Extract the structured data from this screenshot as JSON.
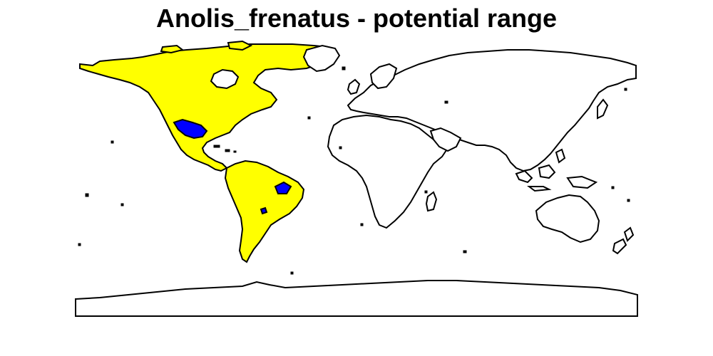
{
  "map": {
    "title": "Anolis_frenatus - potential range",
    "projection": "longitude-latitude",
    "colors": {
      "background": "#ffffff",
      "land_outline": "#000000",
      "land_fill": "#ffffff",
      "potential_range": "#ffff00",
      "occurrence_zones": "#0000ff"
    },
    "layers": [
      "world-land-outline",
      "potential-range-americas",
      "occurrence-zones"
    ],
    "regions_highlighted": [
      "North America",
      "Central America",
      "South America"
    ]
  }
}
